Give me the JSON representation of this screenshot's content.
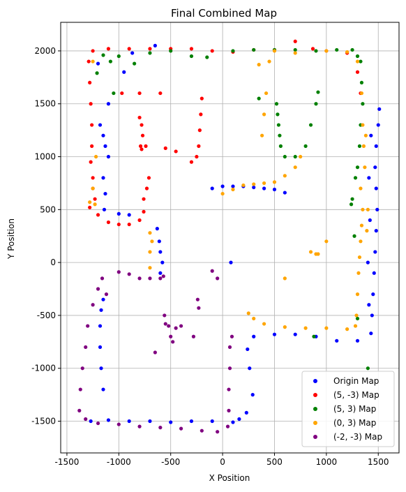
{
  "chart_data": {
    "type": "scatter",
    "title": "Final Combined Map",
    "xlabel": "X Position",
    "ylabel": "Y Position",
    "xlim": [
      -1560,
      1700
    ],
    "ylim": [
      -1800,
      2270
    ],
    "xticks": [
      -1500,
      -1000,
      -500,
      0,
      500,
      1000,
      1500
    ],
    "yticks": [
      -1500,
      -1000,
      -500,
      0,
      500,
      1000,
      1500,
      2000
    ],
    "grid": true,
    "legend_position": "lower right",
    "series": [
      {
        "name": "Origin Map",
        "color": "#0000ff",
        "points": [
          [
            -1270,
            -1500
          ],
          [
            -1100,
            -1490
          ],
          [
            -900,
            -1500
          ],
          [
            -700,
            -1500
          ],
          [
            -500,
            -1510
          ],
          [
            -300,
            -1500
          ],
          [
            -100,
            -1500
          ],
          [
            100,
            -1510
          ],
          [
            160,
            -1480
          ],
          [
            230,
            -1420
          ],
          [
            290,
            -1250
          ],
          [
            260,
            -1000
          ],
          [
            240,
            -820
          ],
          [
            300,
            -700
          ],
          [
            500,
            -680
          ],
          [
            700,
            -680
          ],
          [
            900,
            -700
          ],
          [
            1100,
            -740
          ],
          [
            1300,
            -740
          ],
          [
            1430,
            -670
          ],
          [
            1440,
            -500
          ],
          [
            1450,
            -300
          ],
          [
            1460,
            -100
          ],
          [
            1470,
            100
          ],
          [
            1480,
            300
          ],
          [
            1490,
            500
          ],
          [
            1480,
            700
          ],
          [
            1470,
            900
          ],
          [
            1480,
            1100
          ],
          [
            1500,
            1300
          ],
          [
            1510,
            1450
          ],
          [
            1430,
            1200
          ],
          [
            1410,
            800
          ],
          [
            1420,
            400
          ],
          [
            1400,
            0
          ],
          [
            1410,
            -400
          ],
          [
            -1150,
            -1200
          ],
          [
            -1170,
            -1000
          ],
          [
            -1180,
            -800
          ],
          [
            -1180,
            -600
          ],
          [
            -1170,
            -450
          ],
          [
            -1150,
            -350
          ],
          [
            -1140,
            500
          ],
          [
            -1130,
            650
          ],
          [
            -1150,
            800
          ],
          [
            -1100,
            1000
          ],
          [
            -1130,
            1100
          ],
          [
            -1150,
            1200
          ],
          [
            -1180,
            1300
          ],
          [
            -1100,
            1500
          ],
          [
            -1200,
            1880
          ],
          [
            -950,
            1800
          ],
          [
            -870,
            1980
          ],
          [
            -650,
            2050
          ],
          [
            -630,
            320
          ],
          [
            -610,
            200
          ],
          [
            -600,
            100
          ],
          [
            -580,
            0
          ],
          [
            -600,
            -100
          ],
          [
            -100,
            700
          ],
          [
            0,
            720
          ],
          [
            100,
            720
          ],
          [
            200,
            720
          ],
          [
            300,
            710
          ],
          [
            400,
            700
          ],
          [
            500,
            690
          ],
          [
            600,
            660
          ],
          [
            80,
            0
          ],
          [
            -900,
            450
          ],
          [
            -1000,
            460
          ]
        ]
      },
      {
        "name": "(5, -3) Map",
        "color": "#ff0000",
        "points": [
          [
            -1250,
            2000
          ],
          [
            -1100,
            2020
          ],
          [
            -900,
            2020
          ],
          [
            -700,
            2020
          ],
          [
            -500,
            2020
          ],
          [
            -300,
            2020
          ],
          [
            -100,
            2000
          ],
          [
            100,
            1990
          ],
          [
            300,
            2010
          ],
          [
            500,
            2010
          ],
          [
            700,
            2090
          ],
          [
            870,
            2020
          ],
          [
            1000,
            2000
          ],
          [
            1200,
            1980
          ],
          [
            1300,
            1800
          ],
          [
            1330,
            1600
          ],
          [
            -1290,
            1900
          ],
          [
            -1280,
            1700
          ],
          [
            -1270,
            1500
          ],
          [
            -1260,
            1300
          ],
          [
            -1260,
            1100
          ],
          [
            -1270,
            950
          ],
          [
            -1250,
            800
          ],
          [
            -1250,
            700
          ],
          [
            -1230,
            600
          ],
          [
            -1200,
            450
          ],
          [
            -1100,
            380
          ],
          [
            -1000,
            360
          ],
          [
            -900,
            360
          ],
          [
            -800,
            400
          ],
          [
            -760,
            480
          ],
          [
            -800,
            1370
          ],
          [
            -780,
            1300
          ],
          [
            -770,
            1200
          ],
          [
            -790,
            1100
          ],
          [
            -780,
            1070
          ],
          [
            -740,
            1100
          ],
          [
            -760,
            600
          ],
          [
            -730,
            700
          ],
          [
            -710,
            800
          ],
          [
            -200,
            1550
          ],
          [
            -210,
            1400
          ],
          [
            -220,
            1250
          ],
          [
            -230,
            1100
          ],
          [
            -250,
            1000
          ],
          [
            -300,
            950
          ],
          [
            -550,
            1080
          ],
          [
            -450,
            1050
          ],
          [
            -800,
            1600
          ],
          [
            -600,
            1600
          ],
          [
            -970,
            1600
          ],
          [
            -1280,
            520
          ]
        ]
      },
      {
        "name": "(5, 3) Map",
        "color": "#008000",
        "points": [
          [
            -1150,
            1960
          ],
          [
            -1000,
            1950
          ],
          [
            -850,
            1880
          ],
          [
            -700,
            1980
          ],
          [
            -500,
            2000
          ],
          [
            -300,
            1950
          ],
          [
            -150,
            1940
          ],
          [
            100,
            2000
          ],
          [
            300,
            2010
          ],
          [
            500,
            2010
          ],
          [
            700,
            2010
          ],
          [
            900,
            2000
          ],
          [
            1100,
            2010
          ],
          [
            1250,
            2010
          ],
          [
            1300,
            1950
          ],
          [
            1330,
            1900
          ],
          [
            1340,
            1700
          ],
          [
            1350,
            1500
          ],
          [
            1330,
            1300
          ],
          [
            1320,
            1100
          ],
          [
            1300,
            900
          ],
          [
            1280,
            800
          ],
          [
            1250,
            600
          ],
          [
            1240,
            550
          ],
          [
            -1210,
            1790
          ],
          [
            -1050,
            1600
          ],
          [
            -1080,
            1900
          ],
          [
            350,
            1550
          ],
          [
            520,
            1500
          ],
          [
            530,
            1400
          ],
          [
            540,
            1300
          ],
          [
            550,
            1200
          ],
          [
            560,
            1100
          ],
          [
            600,
            1000
          ],
          [
            700,
            1000
          ],
          [
            800,
            1100
          ],
          [
            850,
            1300
          ],
          [
            900,
            1500
          ],
          [
            920,
            1610
          ],
          [
            1270,
            250
          ],
          [
            1300,
            -530
          ],
          [
            1400,
            -1000
          ],
          [
            880,
            -700
          ]
        ]
      },
      {
        "name": "(0, 3) Map",
        "color": "#ffa500",
        "points": [
          [
            -1280,
            570
          ],
          [
            -1250,
            700
          ],
          [
            -1220,
            1000
          ],
          [
            500,
            2000
          ],
          [
            700,
            1980
          ],
          [
            1000,
            2000
          ],
          [
            1200,
            1990
          ],
          [
            1300,
            1900
          ],
          [
            1340,
            1600
          ],
          [
            1350,
            1300
          ],
          [
            1360,
            1100
          ],
          [
            1370,
            900
          ],
          [
            1330,
            700
          ],
          [
            1350,
            500
          ],
          [
            1340,
            350
          ],
          [
            1330,
            200
          ],
          [
            1320,
            50
          ],
          [
            1310,
            -100
          ],
          [
            1300,
            -300
          ],
          [
            1290,
            -500
          ],
          [
            1280,
            -600
          ],
          [
            1200,
            -630
          ],
          [
            1000,
            -620
          ],
          [
            800,
            -620
          ],
          [
            600,
            -610
          ],
          [
            400,
            -580
          ],
          [
            300,
            -530
          ],
          [
            250,
            -480
          ],
          [
            0,
            650
          ],
          [
            100,
            690
          ],
          [
            200,
            730
          ],
          [
            300,
            740
          ],
          [
            400,
            750
          ],
          [
            500,
            760
          ],
          [
            600,
            820
          ],
          [
            700,
            900
          ],
          [
            750,
            1000
          ],
          [
            420,
            1600
          ],
          [
            400,
            1400
          ],
          [
            380,
            1200
          ],
          [
            850,
            100
          ],
          [
            900,
            80
          ],
          [
            920,
            80
          ],
          [
            1000,
            200
          ],
          [
            600,
            -150
          ],
          [
            -700,
            280
          ],
          [
            -680,
            200
          ],
          [
            -700,
            100
          ],
          [
            -700,
            -50
          ],
          [
            -1250,
            1900
          ],
          [
            -1230,
            550
          ],
          [
            1390,
            300
          ],
          [
            1400,
            500
          ],
          [
            1380,
            1200
          ],
          [
            350,
            1870
          ],
          [
            450,
            1900
          ]
        ]
      },
      {
        "name": "(-2, -3) Map",
        "color": "#800080",
        "points": [
          [
            -1000,
            -90
          ],
          [
            -900,
            -110
          ],
          [
            -800,
            -150
          ],
          [
            -700,
            -150
          ],
          [
            -600,
            -150
          ],
          [
            -570,
            -130
          ],
          [
            -1160,
            -150
          ],
          [
            -1200,
            -250
          ],
          [
            -1250,
            -400
          ],
          [
            -1300,
            -600
          ],
          [
            -1320,
            -800
          ],
          [
            -1350,
            -1000
          ],
          [
            -1370,
            -1200
          ],
          [
            -1380,
            -1400
          ],
          [
            -1320,
            -1480
          ],
          [
            -1200,
            -1520
          ],
          [
            -1000,
            -1530
          ],
          [
            -800,
            -1550
          ],
          [
            -600,
            -1560
          ],
          [
            -400,
            -1570
          ],
          [
            -200,
            -1590
          ],
          [
            -50,
            -1600
          ],
          [
            50,
            -1550
          ],
          [
            60,
            -1400
          ],
          [
            60,
            -1200
          ],
          [
            70,
            -1000
          ],
          [
            70,
            -800
          ],
          [
            90,
            -700
          ],
          [
            -560,
            -500
          ],
          [
            -550,
            -580
          ],
          [
            -520,
            -600
          ],
          [
            -500,
            -700
          ],
          [
            -480,
            -750
          ],
          [
            -450,
            -620
          ],
          [
            -400,
            -600
          ],
          [
            -280,
            -700
          ],
          [
            -240,
            -350
          ],
          [
            -230,
            -430
          ],
          [
            -100,
            -80
          ],
          [
            -50,
            -150
          ],
          [
            -650,
            -850
          ],
          [
            -1120,
            -300
          ]
        ]
      }
    ]
  }
}
